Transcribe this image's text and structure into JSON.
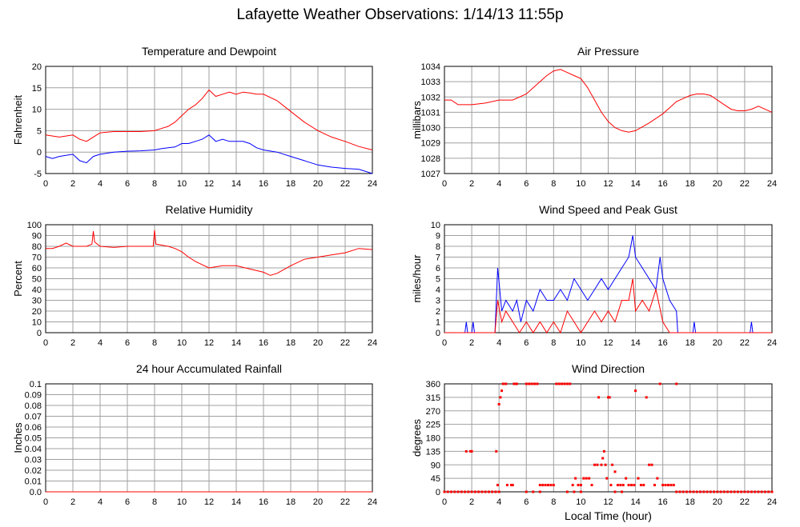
{
  "page": {
    "title": "Lafayette Weather Observations: 1/14/13 11:55p"
  },
  "colors": {
    "red": "#ff0000",
    "blue": "#0000ff",
    "grid": "#a0a0a0",
    "frame": "#000000"
  },
  "chart_data": [
    {
      "id": "temp",
      "type": "line",
      "title": "Temperature and Dewpoint",
      "xlabel": "",
      "ylabel": "Fahrenheit",
      "xlim": [
        0,
        24
      ],
      "ylim": [
        -5,
        20
      ],
      "xticks": [
        0,
        2,
        4,
        6,
        8,
        10,
        12,
        14,
        16,
        18,
        20,
        22,
        24
      ],
      "yticks": [
        -5,
        0,
        5,
        10,
        15,
        20
      ],
      "yticklabels": [
        "-5",
        "0",
        "5",
        "10",
        "15",
        "20"
      ],
      "grid": true,
      "series": [
        {
          "color": "#ff0000",
          "x": [
            0,
            1,
            2,
            2.5,
            3,
            3.5,
            4,
            5,
            6,
            7,
            8,
            8.5,
            9,
            9.5,
            10,
            10.5,
            11,
            11.5,
            12,
            12.5,
            13,
            13.5,
            14,
            14.5,
            15,
            15.5,
            16,
            17,
            18,
            19,
            20,
            21,
            22,
            23,
            24
          ],
          "y": [
            4,
            3.5,
            4,
            3,
            2.5,
            3.5,
            4.5,
            4.8,
            4.8,
            4.8,
            5,
            5.5,
            6,
            7,
            8.5,
            10,
            11,
            12.5,
            14.5,
            13,
            13.5,
            14,
            13.5,
            14,
            13.8,
            13.5,
            13.5,
            12,
            9.5,
            7,
            5,
            3.5,
            2.5,
            1.3,
            0.5
          ]
        },
        {
          "color": "#0000ff",
          "x": [
            0,
            0.5,
            1,
            2,
            2.5,
            3,
            3.5,
            4,
            5,
            6,
            7,
            8,
            8.5,
            9,
            9.5,
            10,
            10.5,
            11,
            11.5,
            12,
            12.5,
            13,
            13.5,
            14,
            14.5,
            15,
            15.5,
            16,
            17,
            18,
            19,
            20,
            21,
            22,
            23,
            24
          ],
          "y": [
            -1,
            -1.5,
            -1,
            -0.5,
            -2,
            -2.5,
            -1,
            -0.5,
            0,
            0.2,
            0.3,
            0.5,
            0.8,
            1,
            1.2,
            2,
            2,
            2.5,
            3,
            4,
            2.5,
            3,
            2.5,
            2.5,
            2.5,
            2,
            1,
            0.5,
            0,
            -1,
            -2,
            -3,
            -3.5,
            -3.8,
            -4,
            -5
          ]
        }
      ]
    },
    {
      "id": "pressure",
      "type": "line",
      "title": "Air Pressure",
      "xlabel": "",
      "ylabel": "millibars",
      "xlim": [
        0,
        24
      ],
      "ylim": [
        1027,
        1034
      ],
      "xticks": [
        0,
        2,
        4,
        6,
        8,
        10,
        12,
        14,
        16,
        18,
        20,
        22,
        24
      ],
      "yticks": [
        1027,
        1028,
        1029,
        1030,
        1031,
        1032,
        1033,
        1034
      ],
      "yticklabels": [
        "1027",
        "1028",
        "1029",
        "1030",
        "1031",
        "1032",
        "1033",
        "1034"
      ],
      "grid": true,
      "series": [
        {
          "color": "#ff0000",
          "x": [
            0,
            0.5,
            1,
            2,
            3,
            4,
            5,
            6,
            6.5,
            7,
            7.5,
            8,
            8.5,
            9,
            9.5,
            10,
            10.5,
            11,
            11.5,
            12,
            12.5,
            13,
            13.5,
            14,
            15,
            16,
            16.5,
            17,
            17.5,
            18,
            18.5,
            19,
            19.5,
            20,
            20.5,
            21,
            21.5,
            22,
            22.5,
            23,
            23.5,
            24
          ],
          "y": [
            1031.8,
            1031.8,
            1031.5,
            1031.5,
            1031.6,
            1031.8,
            1031.8,
            1032.2,
            1032.6,
            1033.0,
            1033.4,
            1033.7,
            1033.8,
            1033.6,
            1033.4,
            1033.2,
            1032.6,
            1031.8,
            1031.0,
            1030.4,
            1030.0,
            1029.8,
            1029.7,
            1029.8,
            1030.3,
            1030.9,
            1031.3,
            1031.7,
            1031.9,
            1032.1,
            1032.2,
            1032.2,
            1032.1,
            1031.8,
            1031.5,
            1031.2,
            1031.1,
            1031.1,
            1031.2,
            1031.4,
            1031.2,
            1031.0
          ]
        }
      ]
    },
    {
      "id": "humidity",
      "type": "line",
      "title": "Relative Humidity",
      "xlabel": "",
      "ylabel": "Percent",
      "xlim": [
        0,
        24
      ],
      "ylim": [
        0,
        100
      ],
      "xticks": [
        0,
        2,
        4,
        6,
        8,
        10,
        12,
        14,
        16,
        18,
        20,
        22,
        24
      ],
      "yticks": [
        0,
        10,
        20,
        30,
        40,
        50,
        60,
        70,
        80,
        90,
        100
      ],
      "yticklabels": [
        "0",
        "10",
        "20",
        "30",
        "40",
        "50",
        "60",
        "70",
        "80",
        "90",
        "100"
      ],
      "grid": true,
      "series": [
        {
          "color": "#ff0000",
          "x": [
            0,
            0.5,
            1,
            1.5,
            2,
            3,
            3.4,
            3.5,
            3.6,
            4,
            5,
            6,
            7,
            7.9,
            8,
            8.1,
            9,
            9.5,
            10,
            10.5,
            11,
            12,
            13,
            14,
            15,
            16,
            16.5,
            17,
            18,
            19,
            20,
            21,
            22,
            23,
            24
          ],
          "y": [
            78,
            78,
            80,
            83,
            80,
            80,
            82,
            94,
            84,
            80,
            79,
            80,
            80,
            80,
            95,
            82,
            80,
            78,
            75,
            70,
            66,
            60,
            62,
            62,
            59,
            56,
            53,
            55,
            62,
            68,
            70,
            72,
            74,
            78,
            77
          ]
        }
      ]
    },
    {
      "id": "wind",
      "type": "line",
      "title": "Wind Speed and Peak Gust",
      "xlabel": "",
      "ylabel": "miles/hour",
      "xlim": [
        0,
        24
      ],
      "ylim": [
        0,
        10
      ],
      "xticks": [
        0,
        2,
        4,
        6,
        8,
        10,
        12,
        14,
        16,
        18,
        20,
        22,
        24
      ],
      "yticks": [
        0,
        1,
        2,
        3,
        4,
        5,
        6,
        7,
        8,
        9,
        10
      ],
      "yticklabels": [
        "0",
        "1",
        "2",
        "3",
        "4",
        "5",
        "6",
        "7",
        "8",
        "9",
        "10"
      ],
      "grid": true,
      "series": [
        {
          "color": "#0000ff",
          "x": [
            0,
            1.5,
            1.6,
            1.7,
            2,
            2.1,
            2.2,
            3.7,
            3.9,
            4.2,
            4.5,
            5,
            5.3,
            5.6,
            6,
            6.5,
            7,
            7.5,
            8,
            8.5,
            9,
            9.5,
            10,
            10.5,
            11,
            11.5,
            12,
            12.5,
            13,
            13.5,
            13.8,
            14,
            14.5,
            15,
            15.5,
            15.8,
            16,
            16.5,
            17,
            17.1,
            17.2,
            18.2,
            18.3,
            18.4,
            22.4,
            22.5,
            22.6,
            24
          ],
          "y": [
            0,
            0,
            1,
            0,
            0,
            1,
            0,
            0,
            6,
            2,
            3,
            2,
            3,
            1,
            3,
            2,
            4,
            3,
            3,
            4,
            3,
            5,
            4,
            3,
            4,
            5,
            4,
            5,
            6,
            7,
            9,
            7,
            6,
            5,
            4,
            7,
            5,
            3,
            2,
            0,
            0,
            0,
            1,
            0,
            0,
            1,
            0,
            0
          ]
        },
        {
          "color": "#ff0000",
          "x": [
            0,
            3.7,
            3.9,
            4.2,
            4.5,
            5,
            5.5,
            6,
            6.5,
            7,
            7.5,
            8,
            8.5,
            9,
            9.5,
            10,
            10.5,
            11,
            11.5,
            12,
            12.5,
            13,
            13.5,
            13.8,
            14,
            14.5,
            15,
            15.5,
            16,
            16.5,
            17,
            24
          ],
          "y": [
            0,
            0,
            3,
            1,
            2,
            1,
            0,
            1,
            0,
            1,
            0,
            1,
            0,
            2,
            1,
            0,
            1,
            2,
            1,
            2,
            1,
            3,
            3,
            5,
            2,
            3,
            2,
            4,
            1,
            0,
            0,
            0
          ]
        }
      ]
    },
    {
      "id": "rain",
      "type": "line",
      "title": "24 hour Accumulated Rainfall",
      "xlabel": "",
      "ylabel": "Inches",
      "xlim": [
        0,
        24
      ],
      "ylim": [
        0,
        0.1
      ],
      "xticks": [
        0,
        2,
        4,
        6,
        8,
        10,
        12,
        14,
        16,
        18,
        20,
        22,
        24
      ],
      "yticks": [
        0,
        0.01,
        0.02,
        0.03,
        0.04,
        0.05,
        0.06,
        0.07,
        0.08,
        0.09,
        0.1
      ],
      "yticklabels": [
        "0.0",
        "0.01",
        "0.02",
        "0.03",
        "0.04",
        "0.05",
        "0.06",
        "0.07",
        "0.08",
        "0.09",
        "0.1"
      ],
      "grid": true,
      "series": [
        {
          "color": "#ff0000",
          "x": [
            0,
            24
          ],
          "y": [
            0,
            0
          ]
        }
      ]
    },
    {
      "id": "direction",
      "type": "scatter",
      "title": "Wind Direction",
      "xlabel": "Local Time (hour)",
      "ylabel": "degrees",
      "xlim": [
        0,
        24
      ],
      "ylim": [
        0,
        360
      ],
      "xticks": [
        0,
        2,
        4,
        6,
        8,
        10,
        12,
        14,
        16,
        18,
        20,
        22,
        24
      ],
      "yticks": [
        0,
        45,
        90,
        135,
        180,
        225,
        270,
        315,
        360
      ],
      "yticklabels": [
        "0",
        "45",
        "90",
        "135",
        "180",
        "225",
        "270",
        "315",
        "360"
      ],
      "grid": true,
      "series": [
        {
          "color": "#ff0000",
          "x": [
            1.6,
            1.9,
            2.0,
            3.8,
            3.9,
            4.0,
            4.1,
            4.2,
            4.3,
            4.5,
            4.6,
            4.9,
            5.0,
            5.1,
            5.2,
            5.3,
            6.0,
            6.2,
            6.4,
            6.6,
            6.8,
            7.0,
            7.2,
            7.4,
            7.6,
            7.8,
            8.0,
            8.2,
            8.4,
            8.6,
            8.8,
            9.0,
            9.2,
            9.4,
            9.6,
            9.8,
            10.0,
            10.2,
            10.4,
            10.6,
            10.8,
            11.0,
            11.2,
            11.3,
            11.5,
            11.6,
            11.7,
            11.8,
            11.9,
            12.0,
            12.1,
            12.2,
            12.3,
            12.5,
            12.7,
            12.9,
            13.1,
            13.3,
            13.5,
            13.7,
            13.9,
            14.0,
            14.2,
            14.4,
            14.6,
            14.8,
            15.0,
            15.2,
            15.4,
            15.6,
            15.8,
            16.0,
            16.2,
            16.4,
            16.6,
            16.8,
            17.0
          ],
          "y": [
            135,
            135,
            135,
            135,
            22.5,
            292,
            315,
            337,
            360,
            360,
            22.5,
            22.5,
            22.5,
            360,
            360,
            360,
            360,
            360,
            360,
            360,
            360,
            22.5,
            22.5,
            22.5,
            22.5,
            22.5,
            22.5,
            360,
            360,
            360,
            360,
            360,
            360,
            22.5,
            45,
            22.5,
            22.5,
            45,
            45,
            45,
            22.5,
            90,
            90,
            315,
            90,
            112,
            135,
            90,
            45,
            315,
            315,
            22.5,
            90,
            67,
            22.5,
            22.5,
            22.5,
            45,
            22.5,
            22.5,
            22.5,
            337,
            45,
            22.5,
            22.5,
            315,
            90,
            90,
            22.5,
            45,
            360,
            22.5,
            22.5,
            22.5,
            22.5,
            22.5,
            360
          ]
        },
        {
          "color": "#ff0000",
          "x": [
            0,
            0.25,
            0.5,
            0.75,
            1.0,
            1.25,
            1.5,
            1.75,
            2.0,
            2.25,
            2.5,
            2.75,
            3.0,
            3.25,
            3.5,
            3.75,
            4.0,
            6.0,
            6.5,
            7.0,
            9.0,
            9.5,
            10.0,
            12.5,
            13.0,
            17.0,
            17.25,
            17.5,
            17.75,
            18.0,
            18.25,
            18.5,
            18.75,
            19.0,
            19.25,
            19.5,
            19.75,
            20.0,
            20.25,
            20.5,
            20.75,
            21.0,
            21.25,
            21.5,
            21.75,
            22.0,
            22.25,
            22.5,
            22.75,
            23.0,
            23.25,
            23.5,
            23.75,
            24.0
          ],
          "y": [
            0,
            0,
            0,
            0,
            0,
            0,
            0,
            0,
            0,
            0,
            0,
            0,
            0,
            0,
            0,
            0,
            0,
            0,
            0,
            0,
            0,
            0,
            0,
            0,
            0,
            0,
            0,
            0,
            0,
            0,
            0,
            0,
            0,
            0,
            0,
            0,
            0,
            0,
            0,
            0,
            0,
            0,
            0,
            0,
            0,
            0,
            0,
            0,
            0,
            0,
            0,
            0,
            0,
            0
          ]
        }
      ]
    }
  ]
}
